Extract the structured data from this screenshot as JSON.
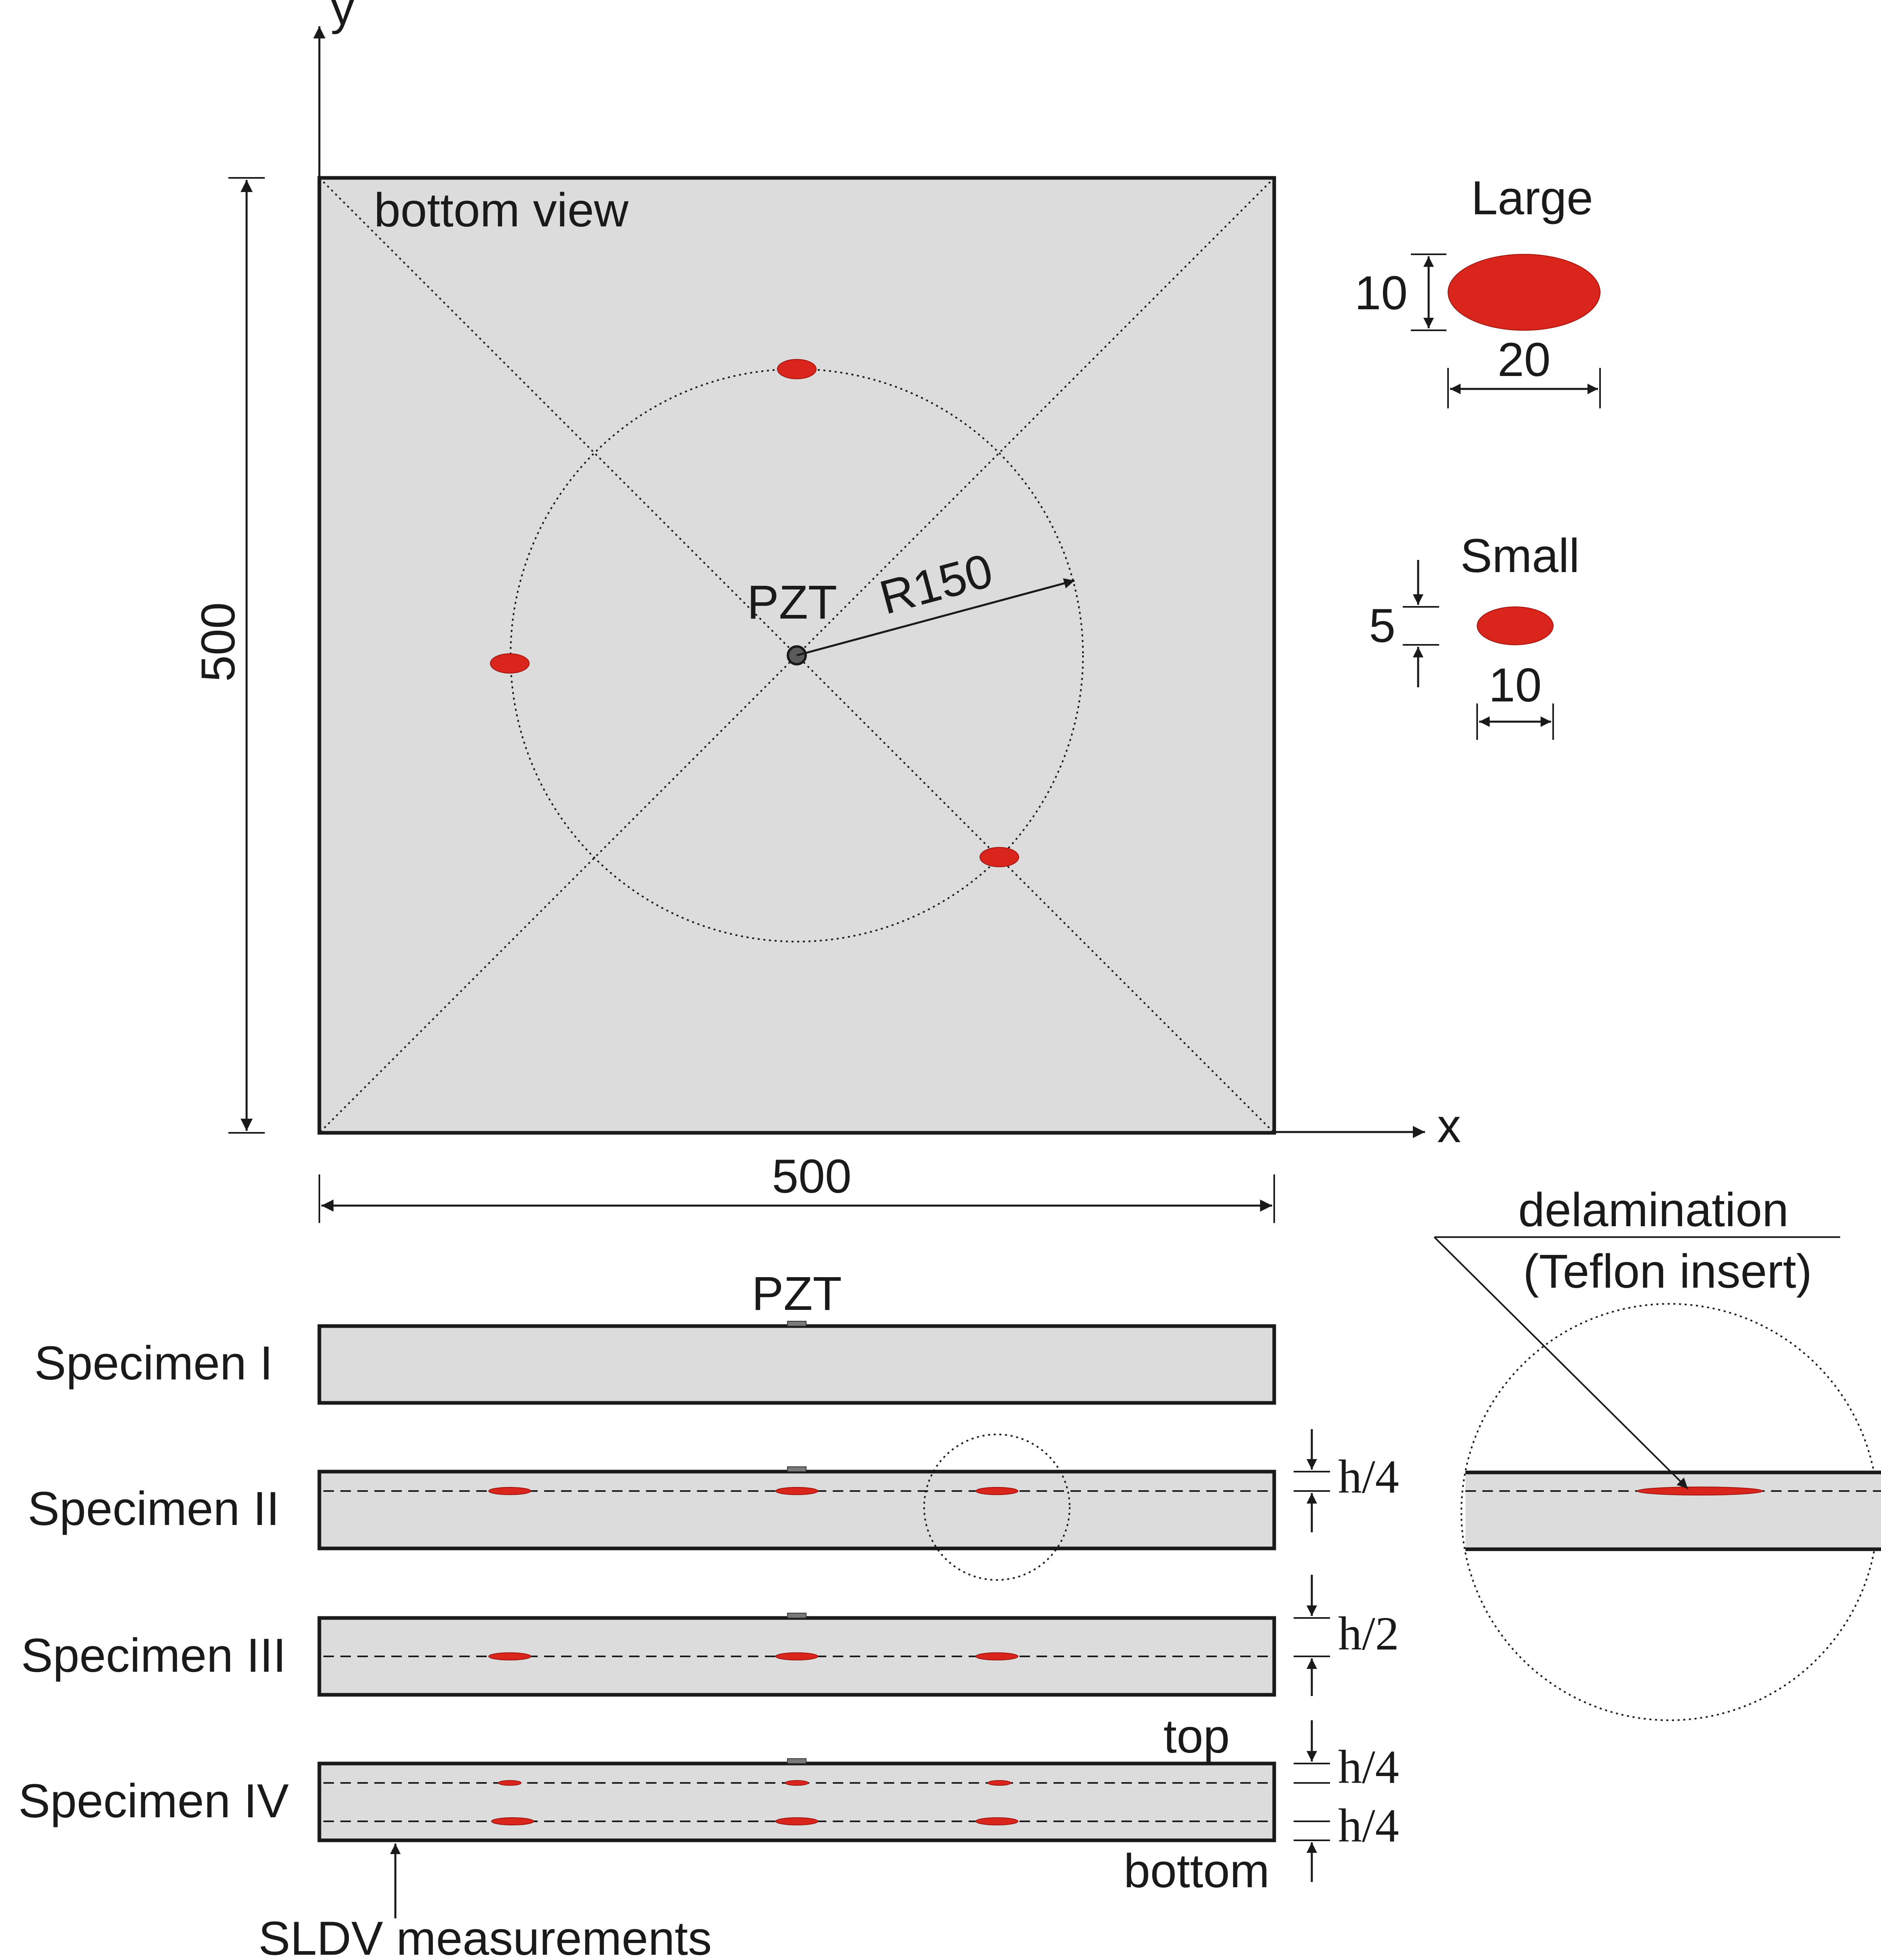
{
  "axes": {
    "x_label": "x",
    "y_label": "y"
  },
  "plate": {
    "view_label": "bottom view",
    "width_label": "500",
    "height_label": "500",
    "pzt_label": "PZT",
    "radius_label": "R150"
  },
  "legend": {
    "large": {
      "title": "Large",
      "height_label": "10",
      "width_label": "20"
    },
    "small": {
      "title": "Small",
      "height_label": "5",
      "width_label": "10"
    }
  },
  "specimens": {
    "pzt_label": "PZT",
    "items": [
      {
        "label": "Specimen I"
      },
      {
        "label": "Specimen II",
        "depth_label": "h/4"
      },
      {
        "label": "Specimen III",
        "depth_label": "h/2"
      },
      {
        "label": "Specimen IV",
        "depth_top_label": "h/4",
        "depth_bottom_label": "h/4"
      }
    ],
    "top_label": "top",
    "bottom_label": "bottom",
    "sldv_label": "SLDV measurements"
  },
  "detail": {
    "label_line1": "delamination",
    "label_line2": "(Teflon insert)"
  },
  "colors": {
    "delamination": "#d9251c",
    "plate_fill": "#dcdcdc",
    "line": "#1a1a1a"
  }
}
